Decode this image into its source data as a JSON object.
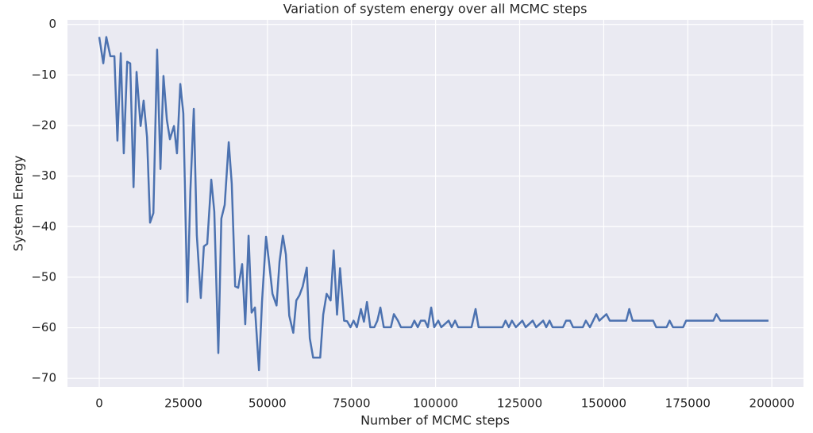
{
  "chart_data": {
    "type": "line",
    "title": "Variation of system energy over all MCMC steps",
    "x_label": "Number of MCMC steps",
    "y_label": "System Energy",
    "grid": true,
    "xlim": [
      -9450,
      209400
    ],
    "ylim": [
      -71.7,
      0.9
    ],
    "xticks": [
      0,
      25000,
      50000,
      75000,
      100000,
      125000,
      150000,
      175000,
      200000
    ],
    "yticks": [
      0,
      {
        "value": -10,
        "label": "−10"
      },
      {
        "value": -20,
        "label": "−20"
      },
      {
        "value": -30,
        "label": "−30"
      },
      {
        "value": -40,
        "label": "−40"
      },
      {
        "value": -50,
        "label": "−50"
      },
      {
        "value": -60,
        "label": "−60"
      },
      {
        "value": -70,
        "label": "−70"
      }
    ],
    "x": [
      0,
      1200,
      2100,
      3300,
      4500,
      5400,
      6400,
      7300,
      8300,
      9200,
      10200,
      11100,
      12300,
      13200,
      14200,
      15100,
      16100,
      17200,
      18200,
      19100,
      20100,
      21000,
      22200,
      23100,
      24100,
      25000,
      26200,
      27100,
      28100,
      29000,
      30200,
      31100,
      32100,
      33300,
      34200,
      35400,
      36300,
      37300,
      38500,
      39400,
      40400,
      41300,
      42500,
      43400,
      44400,
      45300,
      46300,
      47500,
      48400,
      49600,
      50600,
      51500,
      52700,
      53600,
      54600,
      55500,
      56500,
      57700,
      58600,
      59500,
      60500,
      61700,
      62600,
      63600,
      65700,
      66600,
      67600,
      68800,
      69700,
      70700,
      71600,
      72800,
      73700,
      74700,
      75600,
      76600,
      77800,
      78700,
      79600,
      80600,
      81800,
      82700,
      83600,
      84600,
      86700,
      87600,
      88800,
      89700,
      92800,
      93700,
      94700,
      95600,
      96800,
      97700,
      98700,
      99600,
      100800,
      101700,
      103900,
      104800,
      105800,
      106700,
      110700,
      111900,
      112800,
      119900,
      120800,
      121800,
      122700,
      123900,
      125800,
      126800,
      128900,
      129900,
      132000,
      132900,
      133900,
      134800,
      137900,
      138800,
      140000,
      140900,
      143800,
      144700,
      145900,
      147800,
      148700,
      150800,
      151800,
      156700,
      157600,
      158600,
      164700,
      165600,
      168700,
      169600,
      170600,
      173600,
      174500,
      182600,
      183500,
      184700,
      199000
    ],
    "series": [
      {
        "name": "System Energy",
        "color": "#4c72b0",
        "values": [
          -2.5,
          -7.7,
          -2.5,
          -6.3,
          -6.3,
          -23,
          -5.7,
          -25.5,
          -7.4,
          -7.7,
          -32.2,
          -9.4,
          -20.1,
          -15.1,
          -22.3,
          -39.2,
          -37.3,
          -5,
          -28.6,
          -10.2,
          -18.9,
          -22.7,
          -20.1,
          -25.5,
          -11.8,
          -17.6,
          -54.9,
          -32.9,
          -16.7,
          -41.7,
          -54.1,
          -43.9,
          -43.4,
          -30.7,
          -37,
          -65,
          -38.4,
          -35.7,
          -23.3,
          -31.5,
          -51.8,
          -52.1,
          -47.4,
          -59.3,
          -41.8,
          -57,
          -56,
          -68.4,
          -54.9,
          -42,
          -47.8,
          -53.3,
          -55.6,
          -46.9,
          -41.8,
          -45.5,
          -57.6,
          -61,
          -54.6,
          -53.6,
          -51.8,
          -48.1,
          -62.1,
          -65.9,
          -65.9,
          -57.4,
          -53.3,
          -54.6,
          -44.7,
          -57.4,
          -48.2,
          -58.6,
          -58.7,
          -59.9,
          -58.6,
          -59.9,
          -56.3,
          -58.8,
          -54.9,
          -59.9,
          -59.9,
          -58.6,
          -56,
          -59.9,
          -59.9,
          -57.3,
          -58.6,
          -59.9,
          -59.9,
          -58.6,
          -59.9,
          -58.6,
          -58.6,
          -59.9,
          -56,
          -59.9,
          -58.6,
          -59.9,
          -58.6,
          -59.9,
          -58.6,
          -59.9,
          -59.9,
          -56.3,
          -59.9,
          -59.9,
          -58.6,
          -59.9,
          -58.6,
          -59.9,
          -58.6,
          -59.9,
          -58.6,
          -59.9,
          -58.6,
          -59.9,
          -58.6,
          -59.9,
          -59.9,
          -58.6,
          -58.6,
          -59.9,
          -59.9,
          -58.6,
          -59.9,
          -57.3,
          -58.6,
          -57.3,
          -58.6,
          -58.6,
          -56.3,
          -58.6,
          -58.6,
          -59.9,
          -59.9,
          -58.6,
          -59.9,
          -59.9,
          -58.6,
          -58.6,
          -57.3,
          -58.6,
          -58.6
        ]
      }
    ]
  }
}
